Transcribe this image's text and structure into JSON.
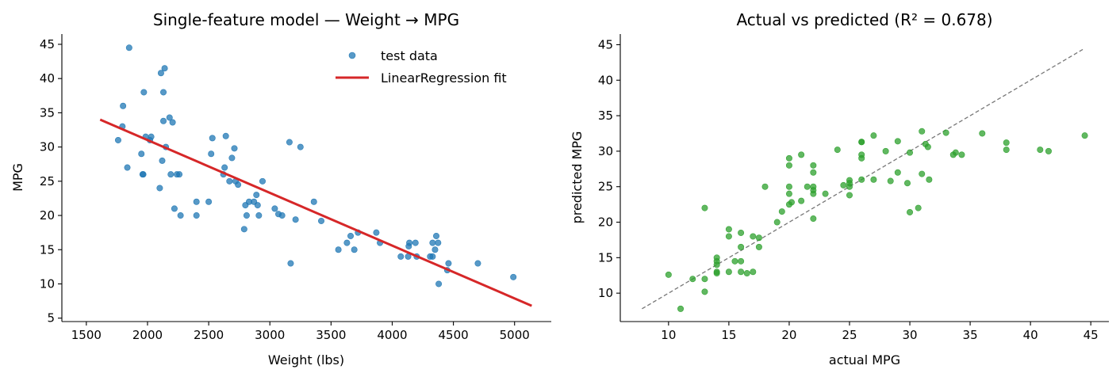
{
  "colors": {
    "test_points": "#1f77b4",
    "fit_line": "#d62728",
    "pred_points": "#2ca02c",
    "identity_line": "#777777"
  },
  "chart_data": [
    {
      "type": "scatter",
      "title": "Single-feature model — Weight → MPG",
      "xlabel": "Weight (lbs)",
      "ylabel": "MPG",
      "xlim": [
        1300,
        5300
      ],
      "ylim": [
        4.5,
        46.5
      ],
      "xticks": [
        1500,
        2000,
        2500,
        3000,
        3500,
        4000,
        4500,
        5000
      ],
      "yticks": [
        5,
        10,
        15,
        20,
        25,
        30,
        35,
        40,
        45
      ],
      "legend_position": "top-right",
      "grid": false,
      "series": [
        {
          "name": "test data",
          "kind": "scatter",
          "x": [
            1760,
            1800,
            1795,
            1835,
            1850,
            1950,
            1965,
            1960,
            1970,
            1985,
            2020,
            2030,
            2100,
            2110,
            2120,
            2130,
            2140,
            2130,
            2150,
            2180,
            2190,
            2205,
            2220,
            2240,
            2260,
            2270,
            2400,
            2400,
            2500,
            2520,
            2530,
            2620,
            2630,
            2640,
            2670,
            2690,
            2710,
            2720,
            2740,
            2790,
            2800,
            2810,
            2830,
            2870,
            2890,
            2900,
            2910,
            2940,
            3040,
            3070,
            3100,
            3160,
            3170,
            3210,
            3250,
            3360,
            3420,
            3560,
            3630,
            3660,
            3690,
            3720,
            3870,
            3900,
            4070,
            4130,
            4135,
            4140,
            4190,
            4200,
            4310,
            4330,
            4330,
            4350,
            4360,
            4375,
            4380,
            4450,
            4460,
            4700,
            4990
          ],
          "y": [
            31,
            36,
            33,
            27,
            44.5,
            29,
            26,
            26,
            38,
            31.5,
            31,
            31.5,
            24,
            40.8,
            28,
            38,
            41.5,
            33.8,
            30,
            34.3,
            26,
            33.6,
            21,
            26,
            26,
            20,
            22,
            20,
            22,
            29,
            31.3,
            26,
            27,
            31.6,
            25,
            28.4,
            29.8,
            25,
            24.5,
            18,
            21.5,
            20,
            22,
            22,
            23,
            21.5,
            20,
            25,
            21,
            20.2,
            20,
            30.7,
            13,
            19.4,
            30,
            22,
            19.2,
            15,
            16,
            17,
            15,
            17.5,
            17.5,
            16,
            14,
            14,
            15.5,
            16,
            16,
            14,
            14,
            14,
            16,
            15,
            17,
            16,
            10,
            12,
            13,
            13,
            11
          ]
        },
        {
          "name": "LinearRegression fit",
          "kind": "line",
          "x": [
            1613,
            5140
          ],
          "y": [
            34.0,
            6.8
          ]
        }
      ]
    },
    {
      "type": "scatter",
      "title": "Actual vs predicted (R² = 0.678)",
      "xlabel": "actual MPG",
      "ylabel": "predicted MPG",
      "xlim": [
        6.0,
        46.5
      ],
      "ylim": [
        6.0,
        46.5
      ],
      "xticks": [
        10,
        15,
        20,
        25,
        30,
        35,
        40,
        45
      ],
      "yticks": [
        10,
        15,
        20,
        25,
        30,
        35,
        40,
        45
      ],
      "grid": false,
      "series": [
        {
          "kind": "scatter",
          "x": [
            10,
            11,
            12,
            13,
            13,
            13,
            14,
            14,
            14,
            14,
            14,
            15,
            15,
            15,
            15.5,
            16,
            16,
            16,
            16,
            16.5,
            17,
            17,
            17.5,
            17.5,
            18,
            19,
            19.4,
            20,
            20,
            20,
            20,
            20,
            20.2,
            21,
            21,
            21.5,
            22,
            22,
            22,
            22,
            22,
            22,
            23,
            24,
            24.5,
            25,
            25,
            25,
            25,
            26,
            26,
            26,
            26,
            26,
            27,
            27,
            28,
            28.4,
            29,
            29,
            29.8,
            30,
            30,
            30.7,
            31,
            31,
            31.3,
            31.5,
            31.6,
            33,
            33.6,
            33.8,
            34.3,
            36,
            38,
            38,
            40.8,
            41.5,
            44.5
          ],
          "y": [
            12.6,
            7.8,
            12.0,
            22.0,
            12.0,
            10.2,
            15.0,
            14.5,
            14.0,
            13.0,
            12.8,
            19.0,
            18.0,
            13.0,
            14.5,
            18.5,
            14.5,
            13.0,
            16.5,
            12.8,
            18.0,
            13.0,
            17.8,
            16.5,
            25.0,
            20.0,
            21.5,
            29.0,
            28.0,
            25.0,
            24.0,
            22.5,
            22.8,
            29.5,
            23.0,
            25.0,
            28.0,
            27.0,
            24.5,
            24.0,
            20.5,
            25.0,
            24.0,
            30.2,
            25.2,
            25.9,
            25.0,
            23.8,
            25.5,
            31.3,
            31.3,
            29.5,
            29.0,
            26.0,
            32.2,
            26.0,
            30.0,
            25.8,
            31.4,
            27.0,
            25.5,
            29.8,
            21.4,
            22.0,
            32.8,
            26.8,
            31.0,
            30.6,
            26.0,
            32.6,
            29.5,
            29.8,
            29.5,
            32.5,
            31.2,
            30.2,
            30.2,
            30.0,
            32.2
          ]
        },
        {
          "kind": "identity-line",
          "x": [
            7.8,
            44.5
          ],
          "y": [
            7.8,
            44.5
          ]
        }
      ]
    }
  ]
}
